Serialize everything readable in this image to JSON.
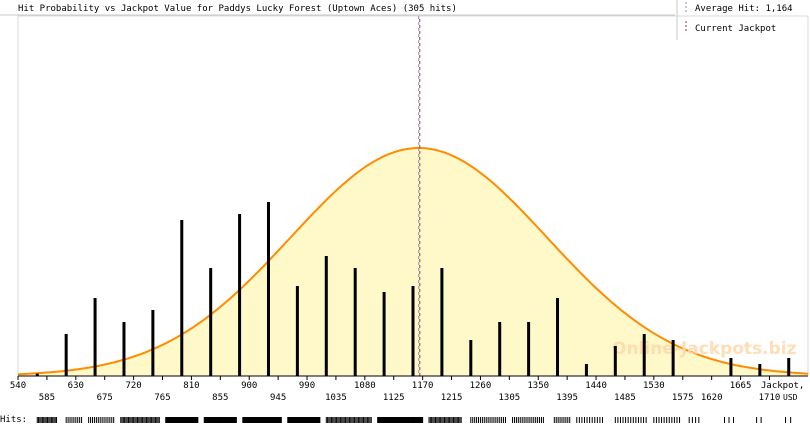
{
  "chart_data": {
    "type": "bar",
    "title": "Hit Probability vs Jackpot Value for Paddys Lucky Forest (Uptown Aces) (305 hits)",
    "xlabel": "Jackpot,",
    "xunit": "USD",
    "xlim": [
      540,
      1770
    ],
    "x_ticks_upper": [
      540,
      630,
      720,
      810,
      900,
      990,
      1080,
      1170,
      1260,
      1350,
      1440,
      1530,
      1665
    ],
    "x_ticks_lower": [
      585,
      675,
      765,
      855,
      945,
      1035,
      1125,
      1215,
      1305,
      1395,
      1485,
      1575,
      1620,
      1710
    ],
    "bars": {
      "x": [
        570,
        615,
        660,
        705,
        750,
        795,
        840,
        885,
        930,
        975,
        1020,
        1065,
        1110,
        1155,
        1200,
        1245,
        1290,
        1335,
        1380,
        1425,
        1470,
        1515,
        1560,
        1650,
        1695,
        1740
      ],
      "values": [
        0.2,
        3.5,
        6.5,
        4.5,
        5.5,
        13,
        9,
        13.5,
        14.5,
        7.5,
        10,
        9,
        7,
        7.5,
        9,
        3,
        4.5,
        4.5,
        6.5,
        1,
        2.5,
        3.5,
        3,
        1.5,
        1,
        1.5
      ],
      "ylim": [
        0,
        30
      ]
    },
    "normal_curve": {
      "mean": 1164,
      "sd": 200,
      "peak": 19,
      "fill": "#fff8c8",
      "stroke": "#ff8c00"
    },
    "average_hit": {
      "label": "Average Hit: 1,164",
      "value": 1164,
      "color": "#8090b0"
    },
    "current_jackpot": {
      "label": "Current Jackpot",
      "value": 1164,
      "color": "#a0304a"
    },
    "watermark": "Online-Jackpots.biz",
    "hits_label": "Hits:",
    "hits_strip": [
      [
        570,
        600,
        2
      ],
      [
        615,
        640,
        3
      ],
      [
        650,
        690,
        3
      ],
      [
        700,
        760,
        2
      ],
      [
        770,
        820,
        1
      ],
      [
        830,
        880,
        1
      ],
      [
        890,
        950,
        1
      ],
      [
        960,
        1010,
        1
      ],
      [
        1020,
        1090,
        2
      ],
      [
        1100,
        1170,
        1
      ],
      [
        1180,
        1230,
        2
      ],
      [
        1245,
        1300,
        3
      ],
      [
        1310,
        1360,
        3
      ],
      [
        1375,
        1400,
        3
      ],
      [
        1410,
        1450,
        4
      ],
      [
        1470,
        1520,
        4
      ],
      [
        1530,
        1570,
        4
      ],
      [
        1585,
        1600,
        5
      ],
      [
        1640,
        1660,
        7
      ],
      [
        1690,
        1700,
        7
      ],
      [
        1735,
        1745,
        8
      ]
    ],
    "colors": {
      "bar": "#000000",
      "axis": "#000000",
      "grid_frame": "#c8c8c8"
    }
  }
}
